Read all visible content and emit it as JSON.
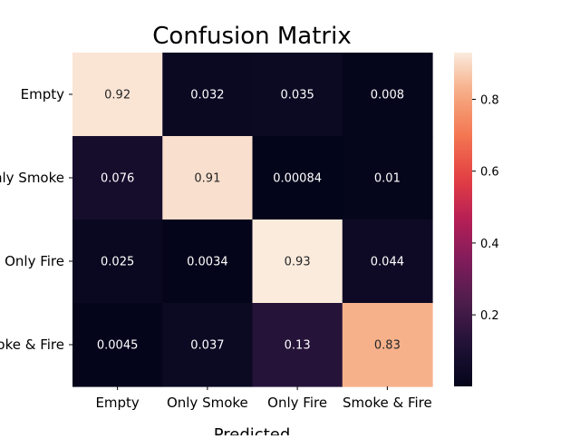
{
  "chart_data": {
    "type": "heatmap",
    "title": "Confusion Matrix",
    "xlabel": "Predicted",
    "ylabel": "",
    "row_labels": [
      "Empty",
      "Only Smoke",
      "Only Fire",
      "Smoke & Fire"
    ],
    "col_labels": [
      "Empty",
      "Only Smoke",
      "Only Fire",
      "Smoke & Fire"
    ],
    "values": [
      [
        0.92,
        0.032,
        0.035,
        0.008
      ],
      [
        0.076,
        0.91,
        0.00084,
        0.01
      ],
      [
        0.025,
        0.0034,
        0.93,
        0.044
      ],
      [
        0.0045,
        0.037,
        0.13,
        0.83
      ]
    ],
    "cell_labels": [
      [
        "0.92",
        "0.032",
        "0.035",
        "0.008"
      ],
      [
        "0.076",
        "0.91",
        "0.00084",
        "0.01"
      ],
      [
        "0.025",
        "0.0034",
        "0.93",
        "0.044"
      ],
      [
        "0.0045",
        "0.037",
        "0.13",
        "0.83"
      ]
    ],
    "colorbar": {
      "min": 0.00084,
      "max": 0.93,
      "ticks": [
        "0.2",
        "0.4",
        "0.6",
        "0.8"
      ],
      "colormap": "rocket"
    },
    "grid": false
  }
}
